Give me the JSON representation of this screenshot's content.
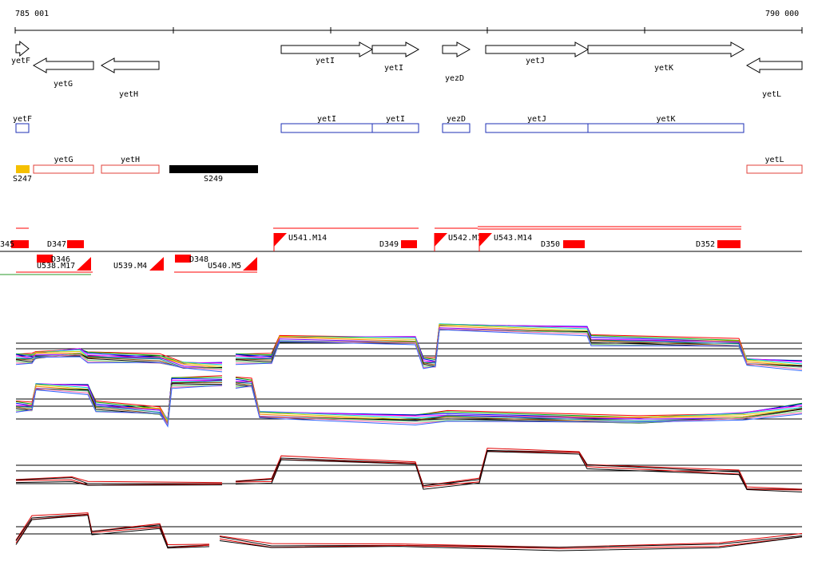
{
  "ruler": {
    "start_label": "785 001",
    "end_label": "790 000"
  },
  "colors": {
    "cds": "#000000",
    "blue_box": "#1c2fb5",
    "red_box": "#e0403a",
    "red_fill": "#ff0000",
    "yellow": "#f5c000",
    "black_fill": "#000000"
  },
  "genes_top": [
    {
      "name": "yetF",
      "dir": "right"
    },
    {
      "name": "yetG",
      "dir": "left"
    },
    {
      "name": "yetH",
      "dir": "left"
    },
    {
      "name": "yetI",
      "dir": "right"
    },
    {
      "name": "yetI",
      "dir": "right"
    },
    {
      "name": "yezD",
      "dir": "right"
    },
    {
      "name": "yetJ",
      "dir": "right"
    },
    {
      "name": "yetK",
      "dir": "right"
    },
    {
      "name": "yetL",
      "dir": "left"
    }
  ],
  "blue_boxes": [
    {
      "name": "yetF"
    },
    {
      "name": "yetI"
    },
    {
      "name": "yetI"
    },
    {
      "name": "yezD"
    },
    {
      "name": "yetJ"
    },
    {
      "name": "yetK"
    }
  ],
  "red_boxes": [
    {
      "name": "yetG"
    },
    {
      "name": "yetH"
    },
    {
      "name": "yetL"
    }
  ],
  "segments": [
    {
      "name": "S247",
      "kind": "yellow"
    },
    {
      "name": "S249",
      "kind": "black"
    }
  ],
  "features_upper": [
    "345",
    "D347",
    "U541.M14",
    "D349",
    "U542.M17",
    "U543.M14",
    "D350",
    "D352"
  ],
  "features_lower": [
    "D346",
    "U538.M17",
    "U539.M4",
    "D348",
    "U540.M5"
  ]
}
